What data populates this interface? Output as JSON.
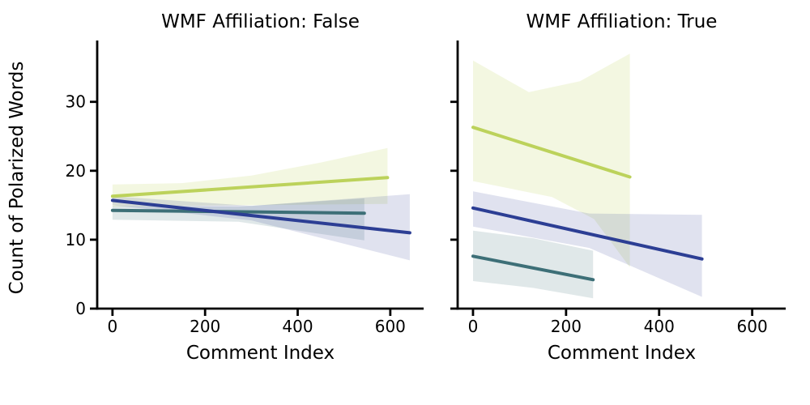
{
  "figure": {
    "ylabel": "Count of Polarized Words",
    "background": "#ffffff",
    "axis_color": "#000000"
  },
  "chart_data": [
    {
      "type": "line",
      "title": "WMF Affiliation: False",
      "xlabel": "Comment Index",
      "ylabel": "Count of Polarized Words",
      "xlim": [
        -33,
        672
      ],
      "ylim": [
        0,
        38.9
      ],
      "xticks": [
        0,
        200,
        400,
        600
      ],
      "yticks": [
        0,
        10,
        20,
        30
      ],
      "ytick_labels_visible": true,
      "grid": false,
      "legend": "none",
      "series": [
        {
          "name": "yellowgreen-group",
          "color": "#bcd25b",
          "band_opacity": 0.18,
          "line": [
            [
              0,
              16.3
            ],
            [
              594,
              19.0
            ]
          ],
          "band_upper": [
            [
              0,
              18.0
            ],
            [
              150,
              18.2
            ],
            [
              300,
              19.3
            ],
            [
              450,
              21.2
            ],
            [
              594,
              23.3
            ]
          ],
          "band_lower": [
            [
              0,
              14.8
            ],
            [
              150,
              14.9
            ],
            [
              300,
              15.0
            ],
            [
              450,
              15.1
            ],
            [
              594,
              15.2
            ]
          ]
        },
        {
          "name": "teal-group",
          "color": "#3d6f77",
          "band_opacity": 0.16,
          "line": [
            [
              0,
              14.25
            ],
            [
              544,
              13.85
            ]
          ],
          "band_upper": [
            [
              0,
              14.9
            ],
            [
              272,
              14.8
            ],
            [
              544,
              16.0
            ]
          ],
          "band_lower": [
            [
              0,
              12.9
            ],
            [
              272,
              12.6
            ],
            [
              544,
              9.9
            ]
          ]
        },
        {
          "name": "navy-group",
          "color": "#2c3e94",
          "band_opacity": 0.15,
          "line": [
            [
              0,
              15.7
            ],
            [
              642,
              11.0
            ]
          ],
          "band_upper": [
            [
              0,
              16.3
            ],
            [
              300,
              14.9
            ],
            [
              642,
              16.6
            ]
          ],
          "band_lower": [
            [
              0,
              15.0
            ],
            [
              300,
              12.8
            ],
            [
              642,
              7.0
            ]
          ]
        }
      ]
    },
    {
      "type": "line",
      "title": "WMF Affiliation: True",
      "xlabel": "Comment Index",
      "ylabel": "",
      "xlim": [
        -33,
        672
      ],
      "ylim": [
        0,
        38.9
      ],
      "xticks": [
        0,
        200,
        400,
        600
      ],
      "yticks": [
        0,
        10,
        20,
        30
      ],
      "ytick_labels_visible": false,
      "grid": false,
      "legend": "none",
      "series": [
        {
          "name": "yellowgreen-group",
          "color": "#bcd25b",
          "band_opacity": 0.18,
          "line": [
            [
              0,
              26.3
            ],
            [
              337,
              19.1
            ]
          ],
          "band_upper": [
            [
              0,
              36.0
            ],
            [
              120,
              31.4
            ],
            [
              230,
              33.0
            ],
            [
              337,
              37.0
            ]
          ],
          "band_lower": [
            [
              0,
              18.5
            ],
            [
              170,
              16.2
            ],
            [
              260,
              13.0
            ],
            [
              337,
              6.0
            ]
          ]
        },
        {
          "name": "teal-group",
          "color": "#3d6f77",
          "band_opacity": 0.16,
          "line": [
            [
              0,
              7.6
            ],
            [
              258,
              4.2
            ]
          ],
          "band_upper": [
            [
              0,
              11.3
            ],
            [
              130,
              10.2
            ],
            [
              258,
              8.4
            ]
          ],
          "band_lower": [
            [
              0,
              4.0
            ],
            [
              130,
              3.0
            ],
            [
              258,
              1.5
            ]
          ]
        },
        {
          "name": "navy-group",
          "color": "#2c3e94",
          "band_opacity": 0.15,
          "line": [
            [
              0,
              14.6
            ],
            [
              492,
              7.2
            ]
          ],
          "band_upper": [
            [
              0,
              17.0
            ],
            [
              250,
              13.8
            ],
            [
              492,
              13.6
            ]
          ],
          "band_lower": [
            [
              0,
              11.9
            ],
            [
              250,
              8.8
            ],
            [
              492,
              1.7
            ]
          ]
        }
      ]
    }
  ]
}
